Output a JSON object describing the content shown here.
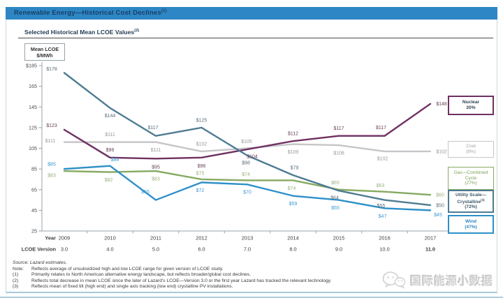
{
  "header": {
    "title": "Renewable Energy—Historical Cost  Declines",
    "title_sup": "(1)",
    "bar_color": "#2e86c4",
    "text_color": "#173f66"
  },
  "subtitle": {
    "text": "Selected Historical Mean LCOE  Values",
    "sup": "(2)"
  },
  "unit_box": {
    "line1": "Mean LCOE",
    "line2": "$/MWh"
  },
  "chart_data": {
    "type": "line",
    "title": "Selected Historical Mean LCOE Values",
    "ylabel": "Mean LCOE $/MWh",
    "ylim": [
      25,
      185
    ],
    "grid": false,
    "legend_position": "right",
    "yticks": [
      {
        "label": "$185",
        "value": 185
      },
      {
        "label": "165",
        "value": 165
      },
      {
        "label": "145",
        "value": 145
      },
      {
        "label": "125",
        "value": 125
      },
      {
        "label": "105",
        "value": 105
      },
      {
        "label": "85",
        "value": 85
      },
      {
        "label": "65",
        "value": 65
      },
      {
        "label": "45",
        "value": 45
      },
      {
        "label": "25",
        "value": 25
      }
    ],
    "categories": [
      "2009",
      "2010",
      "2011",
      "2012",
      "2013",
      "2014",
      "2015",
      "2016",
      "2017"
    ],
    "x_axis_rows": [
      {
        "label": "Year",
        "values": [
          "2009",
          "2010",
          "2011",
          "2012",
          "2013",
          "2014",
          "2015",
          "2016",
          "2017"
        ],
        "bold_last": false
      },
      {
        "label": "LCOE  Version",
        "values": [
          "3.0",
          "4.0",
          "5.0",
          "6.0",
          "7.0",
          "8.0",
          "9.0",
          "10.0",
          "11.0"
        ],
        "bold_last": true
      }
    ],
    "draw_order": [
      "Coal",
      "Nuclear",
      "Gas—Combined Cycle",
      "Wind",
      "Utility Scale—Crystalline"
    ],
    "series": [
      {
        "name": "Nuclear",
        "color": "#6f3061",
        "label_color": "#674058",
        "values": [
          123,
          96,
          95,
          96,
          104,
          112,
          117,
          117,
          148
        ],
        "label_offsets": [
          [
            -18,
            -6
          ],
          [
            0,
            -11
          ],
          [
            0,
            12
          ],
          [
            0,
            12
          ],
          [
            7,
            10
          ],
          [
            0,
            -11
          ],
          [
            0,
            -11
          ],
          [
            -5,
            -12
          ],
          [
            16,
            0
          ]
        ],
        "legend_lines": [
          {
            "t": "Nuclear"
          },
          {
            "t": "20%"
          }
        ],
        "legend_color": "#2e4152",
        "legend_bold": true,
        "decline_pct": "20%"
      },
      {
        "name": "Coal",
        "color": "#c6c6ca",
        "label_color": "#97979b",
        "values": [
          111,
          111,
          111,
          102,
          105,
          109,
          108,
          102,
          102
        ],
        "label_offsets": [
          [
            -20,
            -2
          ],
          [
            0,
            -11
          ],
          [
            0,
            11
          ],
          [
            0,
            -11
          ],
          [
            -1,
            -10
          ],
          [
            0,
            11
          ],
          [
            0,
            11
          ],
          [
            -3,
            10
          ],
          [
            16,
            0
          ]
        ],
        "legend_lines": [
          {
            "t": "Coal"
          },
          {
            "t": "(8%)"
          }
        ],
        "legend_color": "#a4a4a8",
        "legend_bold": false,
        "decline_pct": "(8%)"
      },
      {
        "name": "Gas—Combined Cycle",
        "color": "#86a961",
        "label_color": "#9ab07e",
        "values": [
          83,
          82,
          83,
          75,
          74,
          74,
          65,
          63,
          60
        ],
        "label_offsets": [
          [
            -18,
            6
          ],
          [
            -2,
            11
          ],
          [
            0,
            11
          ],
          [
            -2,
            -9
          ],
          [
            -2,
            -9
          ],
          [
            -2,
            11
          ],
          [
            -5,
            -10
          ],
          [
            -6,
            -9
          ],
          [
            14,
            0
          ]
        ],
        "legend_lines": [
          {
            "t": "Gas—Combined"
          },
          {
            "t": "Cycle"
          },
          {
            "t": "(27%)"
          }
        ],
        "legend_color": "#7ca258",
        "legend_bold": false,
        "decline_pct": "(27%)"
      },
      {
        "name": "Utility Scale—Crystalline",
        "color": "#4d7b92",
        "label_color": "#5a6b77",
        "values": [
          178,
          144,
          117,
          125,
          98,
          79,
          64,
          55,
          50
        ],
        "label_offsets": [
          [
            -18,
            -6
          ],
          [
            0,
            11
          ],
          [
            -4,
            -12
          ],
          [
            0,
            -11
          ],
          [
            -2,
            10
          ],
          [
            2,
            -11
          ],
          [
            -6,
            10
          ],
          [
            -5,
            8
          ],
          [
            14,
            0
          ]
        ],
        "legend_lines": [
          {
            "t": "Utility Scale—"
          },
          {
            "t": "Crystalline",
            "sup": "(3)"
          },
          {
            "t": "(72%)"
          }
        ],
        "legend_color": "#3d5668",
        "legend_bold": true,
        "decline_pct": "(72%)"
      },
      {
        "name": "Wind",
        "color": "#2e90c8",
        "label_color": "#3b9ad2",
        "values": [
          85,
          88,
          55,
          72,
          70,
          59,
          55,
          47,
          45
        ],
        "label_offsets": [
          [
            -18,
            -7
          ],
          [
            7,
            -9
          ],
          [
            -15,
            -12
          ],
          [
            -2,
            11
          ],
          [
            0,
            11
          ],
          [
            0,
            11
          ],
          [
            -5,
            11
          ],
          [
            -3,
            11
          ],
          [
            11,
            6
          ]
        ],
        "legend_lines": [
          {
            "t": "Wind"
          },
          {
            "t": "(47%)"
          }
        ],
        "legend_color": "#2e86c4",
        "legend_bold": true,
        "decline_pct": "(47%)"
      }
    ]
  },
  "footer": {
    "source": "Source: Lazard estimates.",
    "rows": [
      {
        "label": "Note:",
        "text": "Reflects average of unsubsidized high and low LCOE  range for given version of LCOE  study."
      },
      {
        "label": "(1)",
        "text": "Primarily relates to North  American alternative energy landscape, but reflects broader/global cost declines."
      },
      {
        "label": "(2)",
        "text": "Reflects total decrease in mean  LCOE  since the later of Lazard's LCOE—Version 3.0 or the first year Lazard has tracked the relevant technology."
      },
      {
        "label": "(3)",
        "text": "Reflects mean of fixed tilt  (high end) and single axis tracking (low end) crystalline PV installations."
      }
    ]
  },
  "watermark": {
    "text": "国际能源小数据"
  }
}
